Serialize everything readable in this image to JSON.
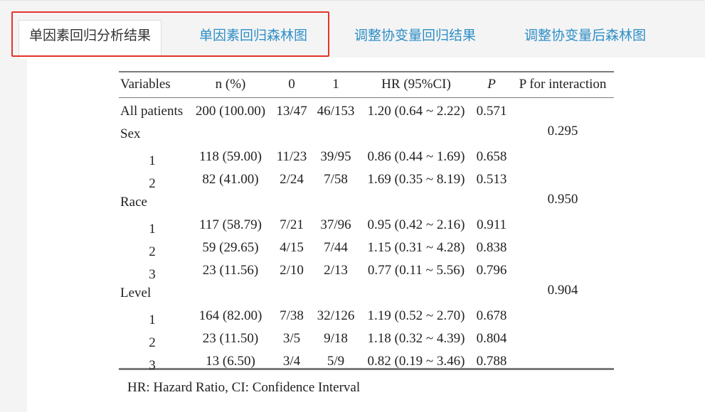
{
  "tabs": [
    {
      "label": "单因素回归分析结果",
      "active": true
    },
    {
      "label": "单因素回归森林图",
      "active": false
    },
    {
      "label": "调整协变量回归结果",
      "active": false
    },
    {
      "label": "调整协变量后森林图",
      "active": false
    }
  ],
  "colors": {
    "tab_link": "#2f8fc6",
    "highlight_border": "#e5342a",
    "active_text": "#333333"
  },
  "table": {
    "headers": {
      "variables": "Variables",
      "n": "n (%)",
      "c0": "0",
      "c1": "1",
      "hr": "HR (95%CI)",
      "p": "P",
      "pint": "P for interaction"
    },
    "rows": [
      {
        "label": "All patients",
        "n": "200 (100.00)",
        "c0": "13/47",
        "c1": "46/153",
        "hr": "1.20 (0.64 ~ 2.22)",
        "p": "0.571",
        "pint": ""
      },
      {
        "label": "Sex",
        "n": "",
        "c0": "",
        "c1": "",
        "hr": "",
        "p": "",
        "pint": "0.295"
      },
      {
        "label": "1",
        "n": "118 (59.00)",
        "c0": "11/23",
        "c1": "39/95",
        "hr": "0.86 (0.44 ~ 1.69)",
        "p": "0.658",
        "pint": ""
      },
      {
        "label": "2",
        "n": "82 (41.00)",
        "c0": "2/24",
        "c1": "7/58",
        "hr": "1.69 (0.35 ~ 8.19)",
        "p": "0.513",
        "pint": ""
      },
      {
        "label": "Race",
        "n": "",
        "c0": "",
        "c1": "",
        "hr": "",
        "p": "",
        "pint": "0.950"
      },
      {
        "label": "1",
        "n": "117 (58.79)",
        "c0": "7/21",
        "c1": "37/96",
        "hr": "0.95 (0.42 ~ 2.16)",
        "p": "0.911",
        "pint": ""
      },
      {
        "label": "2",
        "n": "59 (29.65)",
        "c0": "4/15",
        "c1": "7/44",
        "hr": "1.15 (0.31 ~ 4.28)",
        "p": "0.838",
        "pint": ""
      },
      {
        "label": "3",
        "n": "23 (11.56)",
        "c0": "2/10",
        "c1": "2/13",
        "hr": "0.77 (0.11 ~ 5.56)",
        "p": "0.796",
        "pint": ""
      },
      {
        "label": "Level",
        "n": "",
        "c0": "",
        "c1": "",
        "hr": "",
        "p": "",
        "pint": "0.904"
      },
      {
        "label": "1",
        "n": "164 (82.00)",
        "c0": "7/38",
        "c1": "32/126",
        "hr": "1.19 (0.52 ~ 2.70)",
        "p": "0.678",
        "pint": ""
      },
      {
        "label": "2",
        "n": "23 (11.50)",
        "c0": "3/5",
        "c1": "9/18",
        "hr": "1.18 (0.32 ~ 4.39)",
        "p": "0.804",
        "pint": ""
      },
      {
        "label": "3",
        "n": "13 (6.50)",
        "c0": "3/4",
        "c1": "5/9",
        "hr": "0.82 (0.19 ~ 3.46)",
        "p": "0.788",
        "pint": ""
      }
    ],
    "footnote": "HR: Hazard Ratio, CI: Confidence Interval"
  }
}
